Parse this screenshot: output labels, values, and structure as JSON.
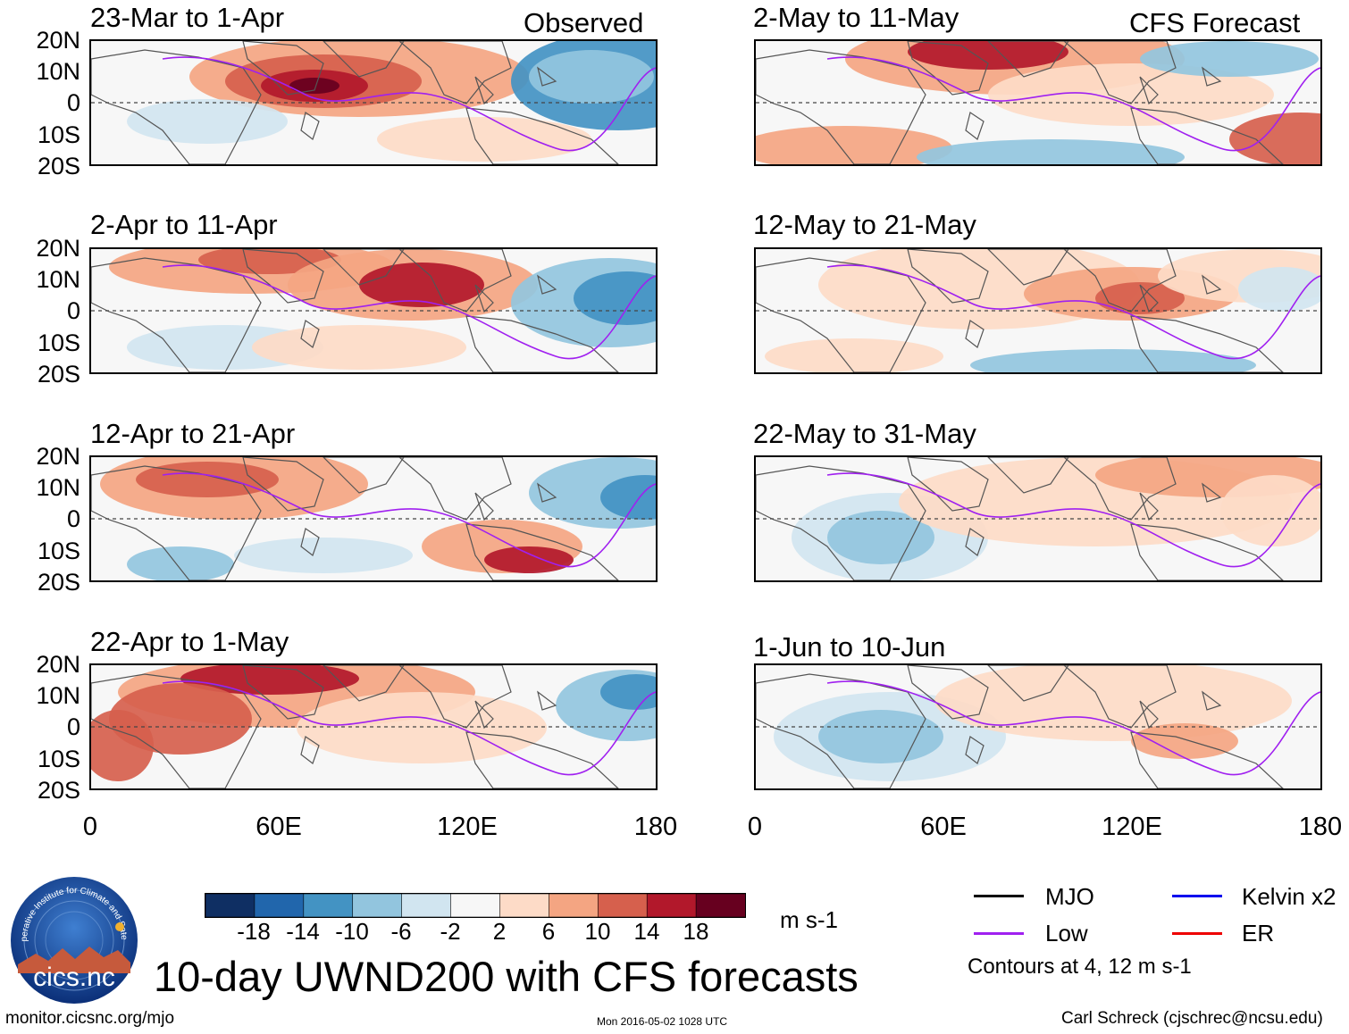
{
  "header": {
    "observed_label": "Observed",
    "forecast_label": "CFS Forecast"
  },
  "panels": [
    {
      "title": "23-Mar to 1-Apr"
    },
    {
      "title": "2-Apr to 11-Apr"
    },
    {
      "title": "12-Apr to 21-Apr"
    },
    {
      "title": "22-Apr to 1-May"
    },
    {
      "title": "2-May to 11-May"
    },
    {
      "title": "12-May to 21-May"
    },
    {
      "title": "22-May to 31-May"
    },
    {
      "title": "1-Jun to 10-Jun"
    }
  ],
  "chart_data": {
    "type": "heatmap",
    "title": "10-day UWND200 with CFS forecasts",
    "variable": "UWND200",
    "units": "m s-1",
    "x_ticks": [
      "0",
      "60E",
      "120E",
      "180"
    ],
    "y_ticks": [
      "20N",
      "10N",
      "0",
      "10S",
      "20S"
    ],
    "xlim": [
      0,
      180
    ],
    "ylim": [
      -20,
      20
    ],
    "colorbar": {
      "levels": [
        -18,
        -14,
        -10,
        -6,
        -2,
        2,
        6,
        10,
        14,
        18
      ],
      "labels": [
        "-18",
        "-14",
        "-10",
        "-6",
        "-2",
        "2",
        "6",
        "10",
        "14",
        "18"
      ],
      "colors": [
        "#0f2f63",
        "#2166ac",
        "#4393c3",
        "#92c5de",
        "#d1e5f0",
        "#f7f7f7",
        "#fddbc7",
        "#f4a582",
        "#d6604d",
        "#b2182b",
        "#67001f"
      ]
    },
    "legend": [
      {
        "label": "MJO",
        "color": "#000000"
      },
      {
        "label": "Kelvin x2",
        "color": "#0000ee"
      },
      {
        "label": "Low",
        "color": "#a020f0"
      },
      {
        "label": "ER",
        "color": "#ee0000"
      }
    ],
    "contour_note": "Contours at 4, 12 m s-1"
  },
  "logo": {
    "text": "cics.nc",
    "ring_text": "Cooperative Institute for Climate and Satellites"
  },
  "footer": {
    "url": "monitor.cicsnc.org/mjo",
    "timestamp": "Mon 2016-05-02 1028 UTC",
    "author": "Carl Schreck (cjschrec@ncsu.edu)"
  }
}
